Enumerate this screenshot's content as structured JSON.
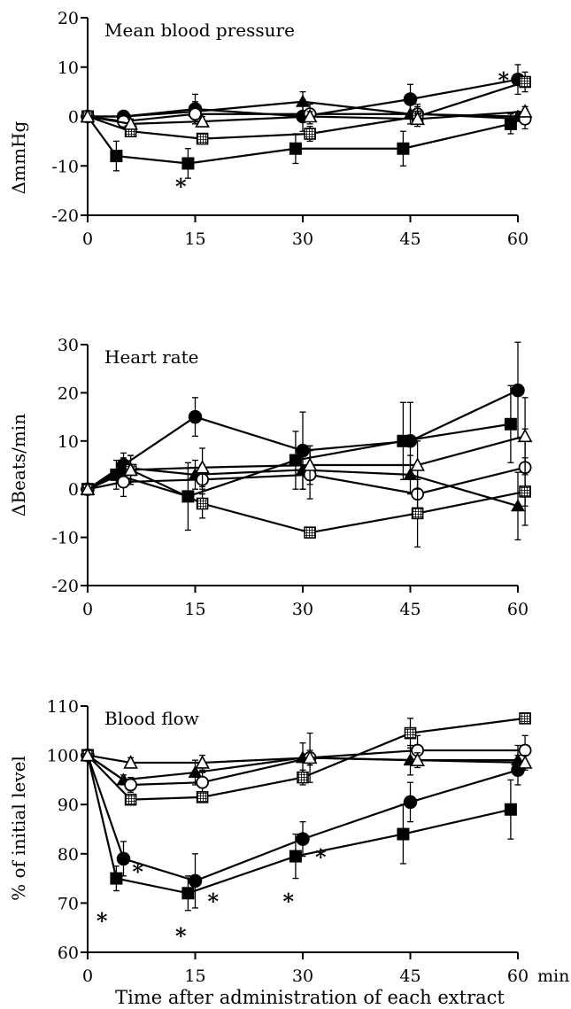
{
  "figure": {
    "xlabel": "Time after administration of each extract"
  },
  "marker_key": {
    "filled_circle": "filled-circle",
    "filled_square": "filled-square",
    "filled_triangle": "filled-triangle",
    "open_circle": "open-circle",
    "open_square": "open-square-crosshatched",
    "open_triangle": "open-triangle"
  },
  "chart_data": [
    {
      "type": "line",
      "title": "Mean blood pressure",
      "ylabel": "ΔmmHg",
      "xlabel": "",
      "x_unit": "",
      "xlim": [
        0,
        60
      ],
      "ylim": [
        -20,
        20
      ],
      "xticks": [
        "0",
        "15",
        "30",
        "45",
        "60"
      ],
      "yticks": [
        "-20",
        "-10",
        "0",
        "10",
        "20"
      ],
      "grid": false,
      "series": [
        {
          "marker": "filled-circle",
          "x": [
            0,
            5,
            15,
            30,
            45,
            60
          ],
          "y": [
            0,
            0,
            1.5,
            0,
            3.5,
            7.5
          ],
          "err": [
            0,
            1,
            3,
            3,
            3,
            3
          ]
        },
        {
          "marker": "filled-square",
          "x": [
            0,
            4,
            14,
            29,
            44,
            59
          ],
          "y": [
            0,
            -8,
            -9.5,
            -6.5,
            -6.5,
            -1.5
          ],
          "err": [
            0,
            3,
            3,
            3,
            3.5,
            2
          ]
        },
        {
          "marker": "filled-triangle",
          "x": [
            0,
            5,
            15,
            30,
            45,
            60
          ],
          "y": [
            0,
            0,
            1,
            3,
            0.5,
            0
          ],
          "err": [
            0,
            1,
            2,
            2,
            2,
            1
          ]
        },
        {
          "marker": "open-circle",
          "x": [
            0,
            5,
            15,
            31,
            46,
            61
          ],
          "y": [
            0,
            -1,
            0.5,
            0.5,
            0.5,
            -0.5
          ],
          "err": [
            0,
            1,
            2,
            2,
            2,
            2
          ]
        },
        {
          "marker": "open-square-crosshatched",
          "x": [
            0,
            6,
            16,
            31,
            46,
            61
          ],
          "y": [
            0,
            -3,
            -4.5,
            -3.5,
            0,
            7
          ],
          "err": [
            0,
            1,
            1,
            1.5,
            2,
            2
          ]
        },
        {
          "marker": "open-triangle",
          "x": [
            0,
            6,
            16,
            31,
            46,
            61
          ],
          "y": [
            0,
            -1.5,
            -1,
            0,
            -0.5,
            1
          ],
          "err": [
            0,
            1,
            1,
            1,
            1,
            1
          ]
        }
      ],
      "annotations": [
        {
          "text": "*",
          "x": 13,
          "y": -13.5
        },
        {
          "text": "*",
          "x": 58,
          "y": 8
        }
      ]
    },
    {
      "type": "line",
      "title": "Heart rate",
      "ylabel": "ΔBeats/min",
      "xlabel": "",
      "x_unit": "",
      "xlim": [
        0,
        60
      ],
      "ylim": [
        -20,
        30
      ],
      "xticks": [
        "0",
        "15",
        "30",
        "45",
        "60"
      ],
      "yticks": [
        "-20",
        "-10",
        "0",
        "10",
        "20",
        "30"
      ],
      "grid": false,
      "series": [
        {
          "marker": "filled-circle",
          "x": [
            0,
            5,
            15,
            30,
            45,
            60
          ],
          "y": [
            0,
            5,
            15,
            8,
            10,
            20.5
          ],
          "err": [
            0,
            2.5,
            4,
            8,
            8,
            10
          ]
        },
        {
          "marker": "filled-square",
          "x": [
            0,
            4,
            14,
            29,
            44,
            59
          ],
          "y": [
            0,
            3,
            -1.5,
            6,
            10,
            13.5
          ],
          "err": [
            0,
            3,
            7,
            6,
            8,
            8
          ]
        },
        {
          "marker": "filled-triangle",
          "x": [
            0,
            5,
            15,
            30,
            45,
            60
          ],
          "y": [
            0,
            4.5,
            3,
            4,
            3,
            -3.5
          ],
          "err": [
            0,
            2,
            3,
            4,
            4,
            7
          ]
        },
        {
          "marker": "open-circle",
          "x": [
            0,
            5,
            16,
            31,
            46,
            61
          ],
          "y": [
            0,
            1.5,
            2,
            3,
            -1,
            4.5
          ],
          "err": [
            0,
            3,
            3,
            5,
            5,
            8
          ]
        },
        {
          "marker": "open-square-crosshatched",
          "x": [
            0,
            6,
            16,
            31,
            46,
            61
          ],
          "y": [
            0,
            4,
            -3,
            -9,
            -5,
            -0.5
          ],
          "err": [
            0,
            3,
            3,
            1,
            7,
            7
          ]
        },
        {
          "marker": "open-triangle",
          "x": [
            0,
            6,
            16,
            31,
            46,
            61
          ],
          "y": [
            0,
            4,
            4.5,
            5,
            5,
            11
          ],
          "err": [
            0,
            3,
            4,
            4,
            5,
            8
          ]
        }
      ],
      "annotations": []
    },
    {
      "type": "line",
      "title": "Blood flow",
      "ylabel": "% of initial level",
      "xlabel": "Time after administration of each extract",
      "x_unit": "min",
      "xlim": [
        0,
        60
      ],
      "ylim": [
        60,
        110
      ],
      "xticks": [
        "0",
        "15",
        "30",
        "45",
        "60"
      ],
      "yticks": [
        "60",
        "70",
        "80",
        "90",
        "100",
        "110"
      ],
      "grid": false,
      "series": [
        {
          "marker": "filled-circle",
          "x": [
            0,
            5,
            15,
            30,
            45,
            60
          ],
          "y": [
            100,
            79,
            74.5,
            83,
            90.5,
            97
          ],
          "err": [
            0,
            3.5,
            5.5,
            3.5,
            4,
            3
          ]
        },
        {
          "marker": "filled-square",
          "x": [
            0,
            4,
            14,
            29,
            44,
            59
          ],
          "y": [
            100,
            75,
            72,
            79.5,
            84,
            89
          ],
          "err": [
            0,
            2.5,
            3.5,
            4.5,
            6,
            6
          ]
        },
        {
          "marker": "filled-triangle",
          "x": [
            0,
            5,
            15,
            30,
            45,
            60
          ],
          "y": [
            100,
            95,
            96.5,
            99.5,
            99,
            99
          ],
          "err": [
            0,
            1,
            2.5,
            3,
            3,
            3
          ]
        },
        {
          "marker": "open-circle",
          "x": [
            0,
            6,
            16,
            31,
            46,
            61
          ],
          "y": [
            100,
            94,
            94.5,
            99.5,
            101,
            101
          ],
          "err": [
            0,
            1.5,
            2,
            5,
            3,
            3
          ]
        },
        {
          "marker": "open-square-crosshatched",
          "x": [
            0,
            6,
            16,
            30,
            45,
            61
          ],
          "y": [
            100,
            91,
            91.5,
            95.5,
            104.5,
            107.5
          ],
          "err": [
            0,
            1,
            1,
            1.5,
            3,
            1
          ]
        },
        {
          "marker": "open-triangle",
          "x": [
            0,
            6,
            16,
            31,
            46,
            61
          ],
          "y": [
            100,
            98.5,
            98.5,
            99.5,
            99,
            98.5
          ],
          "err": [
            0,
            1,
            1.5,
            1.5,
            1.5,
            1.5
          ]
        }
      ],
      "annotations": [
        {
          "text": "*",
          "x": 2,
          "y": 67
        },
        {
          "text": "*",
          "x": 7,
          "y": 77
        },
        {
          "text": "*",
          "x": 13,
          "y": 64
        },
        {
          "text": "*",
          "x": 17.5,
          "y": 71
        },
        {
          "text": "*",
          "x": 28,
          "y": 71
        },
        {
          "text": "*",
          "x": 32.5,
          "y": 80
        }
      ]
    }
  ]
}
